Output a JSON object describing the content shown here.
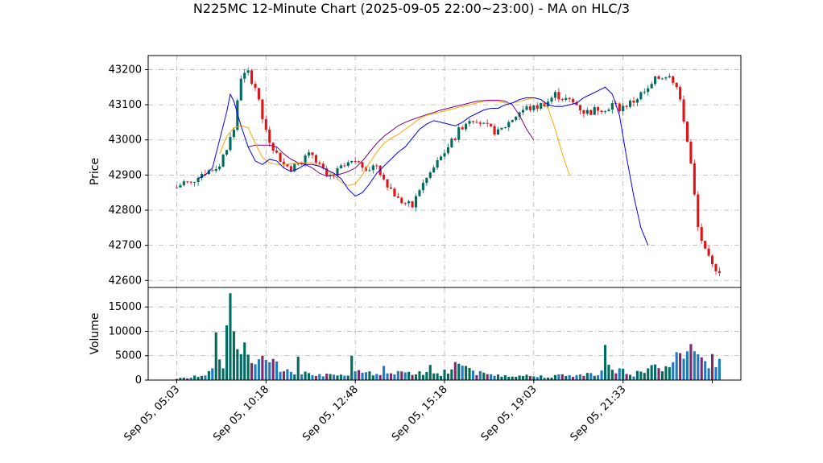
{
  "chart_data": {
    "type": "candlestick",
    "title": "N225MC 12-Minute Chart (2025-09-05 22:00~23:00) - MA on HLC/3",
    "grid": true,
    "colors": {
      "up": "#006b5e",
      "down": "#e01414",
      "ma_short": "#0000ff",
      "ma_mid": "#ffa500",
      "ma_long": "#800080",
      "grid": "#b0b0b0"
    },
    "price_panel": {
      "ylabel": "Price",
      "ylim": [
        42580,
        43240
      ],
      "yticks": [
        42600,
        42700,
        42800,
        42900,
        43000,
        43100,
        43200
      ]
    },
    "volume_panel": {
      "ylabel": "Volume",
      "ylim": [
        0,
        19000
      ],
      "yticks": [
        0,
        5000,
        10000,
        15000
      ]
    },
    "x_tick_labels": [
      "Sep 05, 05:03",
      "Sep 05, 10:18",
      "Sep 05, 12:48",
      "Sep 05, 15:18",
      "Sep 05, 19:03",
      "Sep 05, 21:33"
    ],
    "x_tick_positions": [
      0,
      25,
      50,
      75,
      100,
      125
    ],
    "x_range": [
      -8,
      158
    ],
    "price_anchors": [
      [
        0,
        42865
      ],
      [
        2,
        42880
      ],
      [
        4,
        42875
      ],
      [
        6,
        42900
      ],
      [
        8,
        42910
      ],
      [
        10,
        42915
      ],
      [
        12,
        42930
      ],
      [
        14,
        42980
      ],
      [
        16,
        43030
      ],
      [
        18,
        43180
      ],
      [
        20,
        43190
      ],
      [
        22,
        43150
      ],
      [
        24,
        43060
      ],
      [
        26,
        43000
      ],
      [
        28,
        42960
      ],
      [
        30,
        42930
      ],
      [
        32,
        42920
      ],
      [
        34,
        42930
      ],
      [
        36,
        42950
      ],
      [
        38,
        42960
      ],
      [
        40,
        42930
      ],
      [
        42,
        42890
      ],
      [
        44,
        42900
      ],
      [
        46,
        42920
      ],
      [
        48,
        42930
      ],
      [
        50,
        42940
      ],
      [
        52,
        42925
      ],
      [
        54,
        42920
      ],
      [
        56,
        42930
      ],
      [
        58,
        42890
      ],
      [
        60,
        42860
      ],
      [
        62,
        42830
      ],
      [
        64,
        42820
      ],
      [
        66,
        42810
      ],
      [
        68,
        42860
      ],
      [
        70,
        42890
      ],
      [
        72,
        42920
      ],
      [
        74,
        42950
      ],
      [
        76,
        42980
      ],
      [
        78,
        43010
      ],
      [
        80,
        43040
      ],
      [
        82,
        43060
      ],
      [
        84,
        43060
      ],
      [
        86,
        43040
      ],
      [
        88,
        43030
      ],
      [
        90,
        43020
      ],
      [
        92,
        43040
      ],
      [
        94,
        43060
      ],
      [
        96,
        43080
      ],
      [
        98,
        43090
      ],
      [
        100,
        43090
      ],
      [
        102,
        43100
      ],
      [
        104,
        43110
      ],
      [
        106,
        43130
      ],
      [
        108,
        43120
      ],
      [
        110,
        43110
      ],
      [
        112,
        43100
      ],
      [
        114,
        43080
      ],
      [
        116,
        43080
      ],
      [
        118,
        43090
      ],
      [
        120,
        43090
      ],
      [
        122,
        43100
      ],
      [
        124,
        43090
      ],
      [
        126,
        43100
      ],
      [
        128,
        43110
      ],
      [
        130,
        43130
      ],
      [
        132,
        43140
      ],
      [
        134,
        43170
      ],
      [
        136,
        43180
      ],
      [
        138,
        43190
      ],
      [
        140,
        43150
      ],
      [
        142,
        43060
      ],
      [
        144,
        42930
      ],
      [
        146,
        42750
      ],
      [
        148,
        42680
      ],
      [
        150,
        42640
      ],
      [
        152,
        42630
      ]
    ],
    "ma_short_points": [
      [
        6,
        42890
      ],
      [
        8,
        42900
      ],
      [
        10,
        42920
      ],
      [
        12,
        43000
      ],
      [
        14,
        43080
      ],
      [
        15,
        43130
      ],
      [
        16,
        43110
      ],
      [
        18,
        43040
      ],
      [
        20,
        42980
      ],
      [
        22,
        42940
      ],
      [
        24,
        42930
      ],
      [
        26,
        42945
      ],
      [
        28,
        42940
      ],
      [
        30,
        42920
      ],
      [
        32,
        42910
      ],
      [
        34,
        42918
      ],
      [
        36,
        42930
      ],
      [
        38,
        42930
      ],
      [
        40,
        42925
      ],
      [
        42,
        42915
      ],
      [
        44,
        42905
      ],
      [
        46,
        42890
      ],
      [
        48,
        42860
      ],
      [
        50,
        42840
      ],
      [
        52,
        42850
      ],
      [
        54,
        42875
      ],
      [
        56,
        42905
      ],
      [
        58,
        42925
      ],
      [
        60,
        42945
      ],
      [
        62,
        42965
      ],
      [
        64,
        42980
      ],
      [
        66,
        43005
      ],
      [
        68,
        43030
      ],
      [
        70,
        43045
      ],
      [
        72,
        43055
      ],
      [
        74,
        43050
      ],
      [
        76,
        43045
      ],
      [
        78,
        43040
      ],
      [
        80,
        43050
      ],
      [
        82,
        43065
      ],
      [
        84,
        43075
      ],
      [
        86,
        43085
      ],
      [
        88,
        43090
      ],
      [
        90,
        43090
      ],
      [
        92,
        43100
      ],
      [
        94,
        43105
      ],
      [
        96,
        43115
      ],
      [
        98,
        43120
      ],
      [
        100,
        43120
      ],
      [
        102,
        43115
      ],
      [
        104,
        43100
      ],
      [
        106,
        43095
      ],
      [
        108,
        43095
      ],
      [
        110,
        43100
      ],
      [
        112,
        43105
      ],
      [
        114,
        43120
      ],
      [
        116,
        43130
      ],
      [
        118,
        43140
      ],
      [
        120,
        43150
      ],
      [
        122,
        43130
      ],
      [
        124,
        43070
      ],
      [
        126,
        42950
      ],
      [
        128,
        42840
      ],
      [
        130,
        42750
      ],
      [
        132,
        42700
      ]
    ],
    "ma_mid_points": [
      [
        12,
        42960
      ],
      [
        14,
        43010
      ],
      [
        16,
        43035
      ],
      [
        18,
        43040
      ],
      [
        20,
        43035
      ],
      [
        22,
        42990
      ],
      [
        24,
        42950
      ],
      [
        26,
        42935
      ],
      [
        28,
        42930
      ],
      [
        30,
        42930
      ],
      [
        32,
        42932
      ],
      [
        34,
        42935
      ],
      [
        36,
        42935
      ],
      [
        38,
        42935
      ],
      [
        40,
        42925
      ],
      [
        42,
        42915
      ],
      [
        44,
        42900
      ],
      [
        46,
        42880
      ],
      [
        48,
        42870
      ],
      [
        50,
        42875
      ],
      [
        52,
        42900
      ],
      [
        54,
        42935
      ],
      [
        56,
        42965
      ],
      [
        58,
        42990
      ],
      [
        60,
        43005
      ],
      [
        62,
        43015
      ],
      [
        64,
        43030
      ],
      [
        66,
        43045
      ],
      [
        68,
        43060
      ],
      [
        70,
        43070
      ],
      [
        72,
        43075
      ],
      [
        74,
        43080
      ],
      [
        76,
        43085
      ],
      [
        78,
        43090
      ],
      [
        80,
        43095
      ],
      [
        82,
        43100
      ],
      [
        84,
        43105
      ],
      [
        86,
        43110
      ],
      [
        88,
        43110
      ],
      [
        90,
        43110
      ],
      [
        92,
        43105
      ],
      [
        94,
        43105
      ],
      [
        96,
        43110
      ],
      [
        98,
        43115
      ],
      [
        100,
        43120
      ],
      [
        102,
        43115
      ],
      [
        104,
        43090
      ],
      [
        106,
        43030
      ],
      [
        108,
        42960
      ],
      [
        110,
        42900
      ]
    ],
    "ma_long_points": [
      [
        20,
        42980
      ],
      [
        22,
        42985
      ],
      [
        24,
        42985
      ],
      [
        26,
        42985
      ],
      [
        28,
        42980
      ],
      [
        30,
        42960
      ],
      [
        32,
        42945
      ],
      [
        34,
        42935
      ],
      [
        36,
        42930
      ],
      [
        38,
        42920
      ],
      [
        40,
        42905
      ],
      [
        42,
        42897
      ],
      [
        44,
        42900
      ],
      [
        46,
        42903
      ],
      [
        48,
        42910
      ],
      [
        50,
        42920
      ],
      [
        52,
        42940
      ],
      [
        54,
        42965
      ],
      [
        56,
        42990
      ],
      [
        58,
        43010
      ],
      [
        60,
        43025
      ],
      [
        62,
        43040
      ],
      [
        64,
        43050
      ],
      [
        66,
        43058
      ],
      [
        68,
        43065
      ],
      [
        70,
        43072
      ],
      [
        72,
        43078
      ],
      [
        74,
        43085
      ],
      [
        76,
        43090
      ],
      [
        78,
        43095
      ],
      [
        80,
        43100
      ],
      [
        82,
        43105
      ],
      [
        84,
        43110
      ],
      [
        86,
        43112
      ],
      [
        88,
        43113
      ],
      [
        90,
        43113
      ],
      [
        92,
        43110
      ],
      [
        94,
        43100
      ],
      [
        96,
        43070
      ],
      [
        98,
        43030
      ],
      [
        100,
        43000
      ]
    ],
    "volume_anchors": [
      [
        0,
        300
      ],
      [
        4,
        500
      ],
      [
        8,
        1200
      ],
      [
        10,
        1800
      ],
      [
        11,
        9800
      ],
      [
        12,
        3500
      ],
      [
        13,
        2500
      ],
      [
        14,
        9800
      ],
      [
        15,
        17800
      ],
      [
        16,
        10000
      ],
      [
        17,
        7800
      ],
      [
        18,
        6500
      ],
      [
        20,
        5000
      ],
      [
        22,
        4000
      ],
      [
        24,
        4000
      ],
      [
        26,
        4500
      ],
      [
        28,
        3000
      ],
      [
        30,
        2500
      ],
      [
        32,
        2000
      ],
      [
        34,
        1800
      ],
      [
        36,
        2000
      ],
      [
        38,
        1500
      ],
      [
        40,
        1200
      ],
      [
        42,
        1000
      ],
      [
        46,
        800
      ],
      [
        48,
        700
      ],
      [
        49,
        5000
      ],
      [
        50,
        2500
      ],
      [
        52,
        1500
      ],
      [
        56,
        1200
      ],
      [
        60,
        1500
      ],
      [
        62,
        1800
      ],
      [
        64,
        1200
      ],
      [
        66,
        1500
      ],
      [
        70,
        1200
      ],
      [
        72,
        1500
      ],
      [
        74,
        1200
      ],
      [
        76,
        2000
      ],
      [
        78,
        3500
      ],
      [
        80,
        3000
      ],
      [
        82,
        2500
      ],
      [
        84,
        1500
      ],
      [
        86,
        1200
      ],
      [
        90,
        1000
      ],
      [
        94,
        1000
      ],
      [
        98,
        900
      ],
      [
        100,
        800
      ],
      [
        104,
        800
      ],
      [
        108,
        900
      ],
      [
        112,
        1000
      ],
      [
        116,
        1200
      ],
      [
        119,
        1800
      ],
      [
        120,
        7000
      ],
      [
        121,
        3000
      ],
      [
        122,
        2500
      ],
      [
        124,
        2000
      ],
      [
        126,
        1500
      ],
      [
        128,
        1200
      ],
      [
        130,
        1500
      ],
      [
        132,
        2000
      ],
      [
        134,
        3000
      ],
      [
        136,
        2500
      ],
      [
        138,
        4000
      ],
      [
        140,
        4500
      ],
      [
        142,
        5500
      ],
      [
        144,
        6000
      ],
      [
        146,
        4500
      ],
      [
        148,
        3500
      ],
      [
        150,
        4000
      ],
      [
        152,
        3500
      ]
    ],
    "volume_spikes": [
      [
        11,
        9800
      ],
      [
        15,
        17800
      ],
      [
        16,
        10000
      ],
      [
        24,
        5000
      ],
      [
        34,
        4800
      ],
      [
        49,
        5000
      ],
      [
        58,
        2900
      ],
      [
        71,
        3100
      ],
      [
        78,
        3700
      ],
      [
        120,
        7200
      ],
      [
        134,
        3200
      ],
      [
        143,
        5900
      ]
    ]
  }
}
